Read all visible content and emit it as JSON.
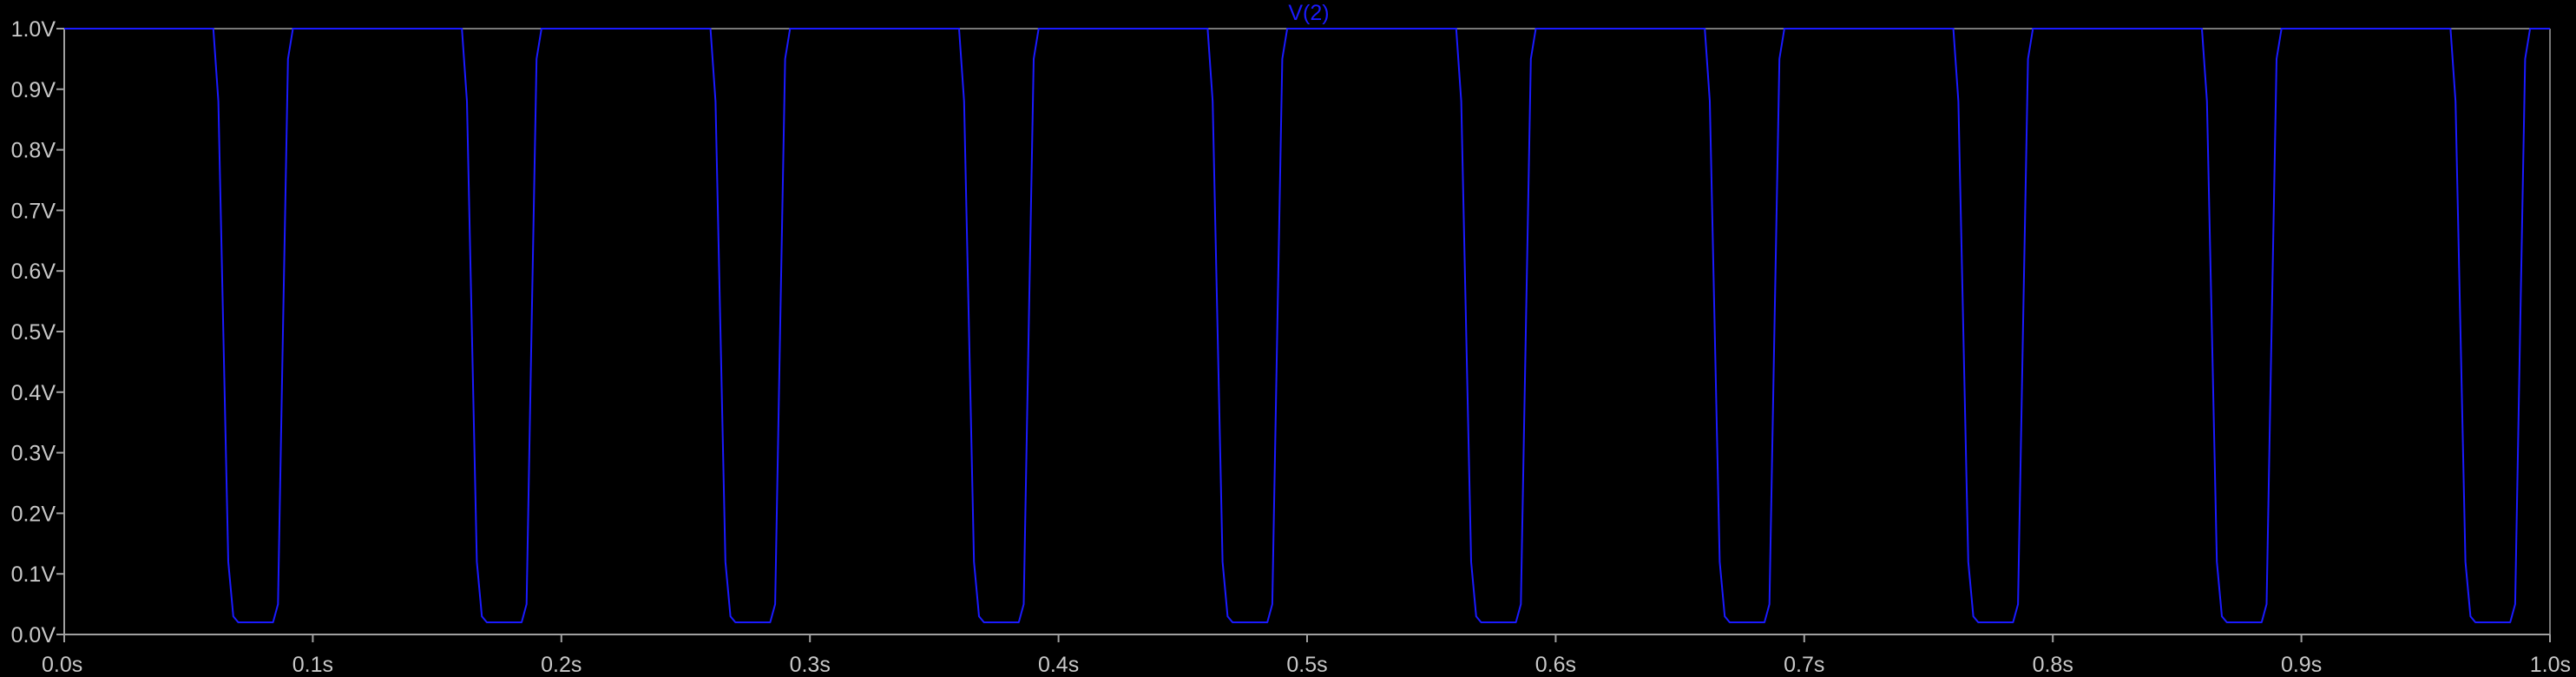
{
  "chart_data": {
    "type": "line",
    "title": "",
    "xlabel": "",
    "ylabel": "",
    "xlim": [
      0.0,
      1.0
    ],
    "ylim": [
      0.0,
      1.0
    ],
    "grid": false,
    "x_ticks": [
      {
        "value": 0.0,
        "label": "0.0s"
      },
      {
        "value": 0.1,
        "label": "0.1s"
      },
      {
        "value": 0.2,
        "label": "0.2s"
      },
      {
        "value": 0.3,
        "label": "0.3s"
      },
      {
        "value": 0.4,
        "label": "0.4s"
      },
      {
        "value": 0.5,
        "label": "0.5s"
      },
      {
        "value": 0.6,
        "label": "0.6s"
      },
      {
        "value": 0.7,
        "label": "0.7s"
      },
      {
        "value": 0.8,
        "label": "0.8s"
      },
      {
        "value": 0.9,
        "label": "0.9s"
      },
      {
        "value": 1.0,
        "label": "1.0s"
      }
    ],
    "y_ticks": [
      {
        "value": 0.0,
        "label": "0.0V"
      },
      {
        "value": 0.1,
        "label": "0.1V"
      },
      {
        "value": 0.2,
        "label": "0.2V"
      },
      {
        "value": 0.3,
        "label": "0.3V"
      },
      {
        "value": 0.4,
        "label": "0.4V"
      },
      {
        "value": 0.5,
        "label": "0.5V"
      },
      {
        "value": 0.6,
        "label": "0.6V"
      },
      {
        "value": 0.7,
        "label": "0.7V"
      },
      {
        "value": 0.8,
        "label": "0.8V"
      },
      {
        "value": 0.9,
        "label": "0.9V"
      },
      {
        "value": 1.0,
        "label": "1.0V"
      }
    ],
    "colors": {
      "background": "#000000",
      "axes": "#a0a0a0",
      "tick_text": "#c8c8c8",
      "trace": "#1a1aff"
    },
    "series": [
      {
        "name": "V(2)",
        "x": [
          0.0,
          0.06,
          0.062,
          0.064,
          0.066,
          0.068,
          0.07,
          0.084,
          0.086,
          0.088,
          0.09,
          0.092,
          0.16,
          0.162,
          0.164,
          0.166,
          0.168,
          0.17,
          0.184,
          0.186,
          0.188,
          0.19,
          0.192,
          0.26,
          0.262,
          0.264,
          0.266,
          0.268,
          0.27,
          0.284,
          0.286,
          0.288,
          0.29,
          0.292,
          0.36,
          0.362,
          0.364,
          0.366,
          0.368,
          0.37,
          0.384,
          0.386,
          0.388,
          0.39,
          0.392,
          0.46,
          0.462,
          0.464,
          0.466,
          0.468,
          0.47,
          0.484,
          0.486,
          0.488,
          0.49,
          0.492,
          0.56,
          0.562,
          0.564,
          0.566,
          0.568,
          0.57,
          0.584,
          0.586,
          0.588,
          0.59,
          0.592,
          0.66,
          0.662,
          0.664,
          0.666,
          0.668,
          0.67,
          0.684,
          0.686,
          0.688,
          0.69,
          0.692,
          0.76,
          0.762,
          0.764,
          0.766,
          0.768,
          0.77,
          0.784,
          0.786,
          0.788,
          0.79,
          0.792,
          0.86,
          0.862,
          0.864,
          0.866,
          0.868,
          0.87,
          0.884,
          0.886,
          0.888,
          0.89,
          0.892,
          0.96,
          0.962,
          0.964,
          0.966,
          0.968,
          0.97,
          0.984,
          0.986,
          0.988,
          0.99,
          0.992,
          1.0
        ],
        "y": [
          1.0,
          1.0,
          0.88,
          0.5,
          0.12,
          0.03,
          0.02,
          0.02,
          0.05,
          0.5,
          0.95,
          1.0,
          1.0,
          0.88,
          0.5,
          0.12,
          0.03,
          0.02,
          0.02,
          0.05,
          0.5,
          0.95,
          1.0,
          1.0,
          0.88,
          0.5,
          0.12,
          0.03,
          0.02,
          0.02,
          0.05,
          0.5,
          0.95,
          1.0,
          1.0,
          0.88,
          0.5,
          0.12,
          0.03,
          0.02,
          0.02,
          0.05,
          0.5,
          0.95,
          1.0,
          1.0,
          0.88,
          0.5,
          0.12,
          0.03,
          0.02,
          0.02,
          0.05,
          0.5,
          0.95,
          1.0,
          1.0,
          0.88,
          0.5,
          0.12,
          0.03,
          0.02,
          0.02,
          0.05,
          0.5,
          0.95,
          1.0,
          1.0,
          0.88,
          0.5,
          0.12,
          0.03,
          0.02,
          0.02,
          0.05,
          0.5,
          0.95,
          1.0,
          1.0,
          0.88,
          0.5,
          0.12,
          0.03,
          0.02,
          0.02,
          0.05,
          0.5,
          0.95,
          1.0,
          1.0,
          0.88,
          0.5,
          0.12,
          0.03,
          0.02,
          0.02,
          0.05,
          0.5,
          0.95,
          1.0,
          1.0,
          0.88,
          0.5,
          0.12,
          0.03,
          0.02,
          0.02,
          0.05,
          0.5,
          0.95,
          1.0,
          1.0
        ]
      }
    ]
  }
}
